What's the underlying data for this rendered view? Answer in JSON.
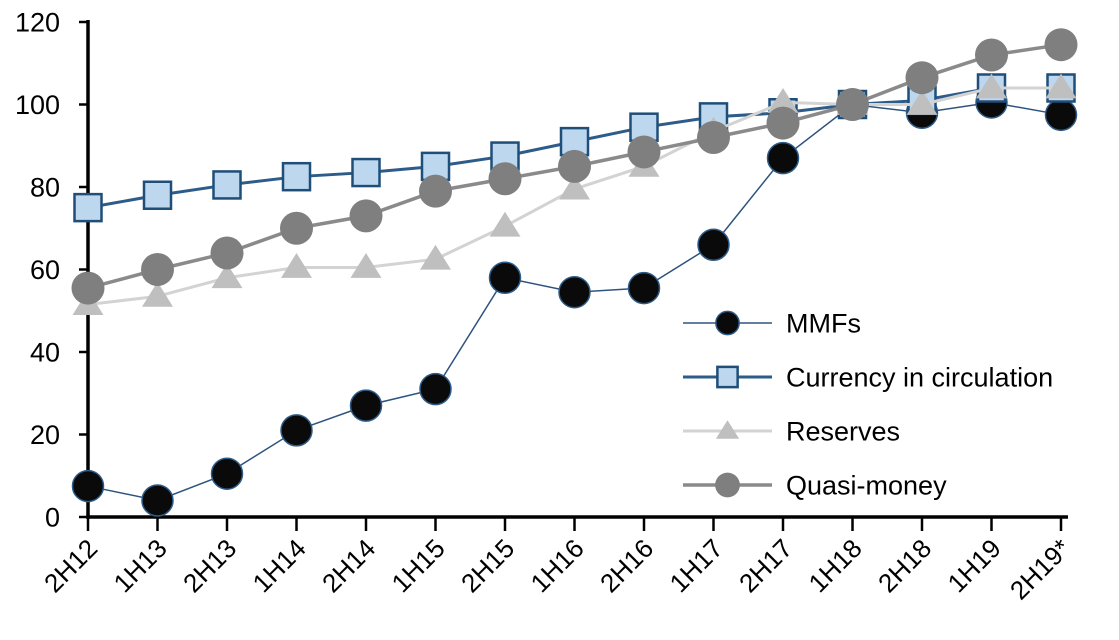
{
  "chart_data": {
    "type": "line",
    "title": "",
    "categories": [
      "2H12",
      "1H13",
      "2H13",
      "1H14",
      "2H14",
      "1H15",
      "2H15",
      "1H16",
      "2H16",
      "1H17",
      "2H17",
      "1H18",
      "2H18",
      "1H19",
      "2H19*"
    ],
    "series": [
      {
        "name": "MMFs",
        "marker": "circle",
        "marker_fill": "#0a0a0a",
        "marker_stroke": "#2E5C8A",
        "marker_stroke_width": 1.5,
        "line_color": "#2E5381",
        "line_width": 1.5,
        "marker_size": 31,
        "values": [
          7.5,
          4,
          10.5,
          21,
          27,
          31,
          58,
          54.5,
          55.5,
          66,
          87,
          100,
          98,
          100.5,
          97.5
        ]
      },
      {
        "name": "Currency in circulation",
        "marker": "square",
        "marker_fill": "#BDD7EE",
        "marker_stroke": "#1F4E79",
        "marker_stroke_width": 2.5,
        "line_color": "#2E5C8A",
        "line_width": 3,
        "marker_size": 27,
        "values": [
          75,
          78,
          80.5,
          82.5,
          83.5,
          85,
          87.5,
          91,
          94.5,
          97,
          98,
          100,
          101,
          104,
          104
        ]
      },
      {
        "name": "Reserves",
        "marker": "triangle",
        "marker_fill": "#BFBFBF",
        "marker_stroke": "none",
        "marker_stroke_width": 0,
        "line_color": "#D3D3D3",
        "line_width": 3,
        "marker_size": 31,
        "values": [
          51.5,
          53.5,
          58,
          60.5,
          60.5,
          62.5,
          70.5,
          79.5,
          85,
          93.5,
          100.5,
          100,
          100,
          104,
          104
        ]
      },
      {
        "name": "Quasi-money",
        "marker": "circle",
        "marker_fill": "#7F7F7F",
        "marker_stroke": "none",
        "marker_stroke_width": 0,
        "line_color": "#8A8A8A",
        "line_width": 3.5,
        "marker_size": 33,
        "values": [
          55.5,
          60,
          64,
          70,
          73,
          79,
          82,
          85,
          88.5,
          92,
          95.5,
          100,
          106.5,
          112,
          114.5
        ]
      }
    ],
    "y_axis": {
      "min": 0,
      "max": 120,
      "step": 20,
      "tick_labels": [
        "0",
        "20",
        "40",
        "60",
        "80",
        "100",
        "120"
      ]
    },
    "x_axis": {
      "tick_labels": [
        "2H12",
        "1H13",
        "2H13",
        "1H14",
        "2H14",
        "1H15",
        "2H15",
        "1H16",
        "2H16",
        "1H17",
        "2H17",
        "1H18",
        "2H18",
        "1H19",
        "2H19*"
      ],
      "label_rotation_deg": -45
    },
    "legend": {
      "position": "inside-right",
      "entries": [
        "MMFs",
        "Currency in circulation",
        "Reserves",
        "Quasi-money"
      ]
    },
    "grid": false,
    "axis_color": "#000000",
    "text_color": "#000000",
    "background": "#FFFFFF"
  }
}
